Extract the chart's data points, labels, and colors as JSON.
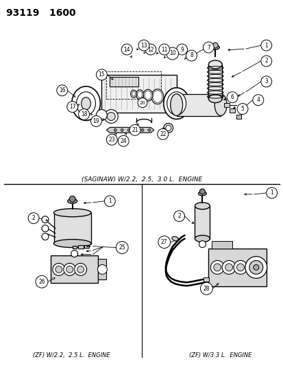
{
  "title": "93119   1600",
  "bg": "#ffffff",
  "fg": "#000000",
  "caption_saginaw": "(SAGINAW) W/2.2,  2.5,  3.0 L.  ENGINE",
  "caption_zf1": "(ZF) W/2.2,  2.5 L.  ENGINE",
  "caption_zf2": "(ZF) W/3.3 L.  ENGINE",
  "gray": "#cccccc",
  "lightgray": "#e8e8e8",
  "darkgray": "#999999"
}
